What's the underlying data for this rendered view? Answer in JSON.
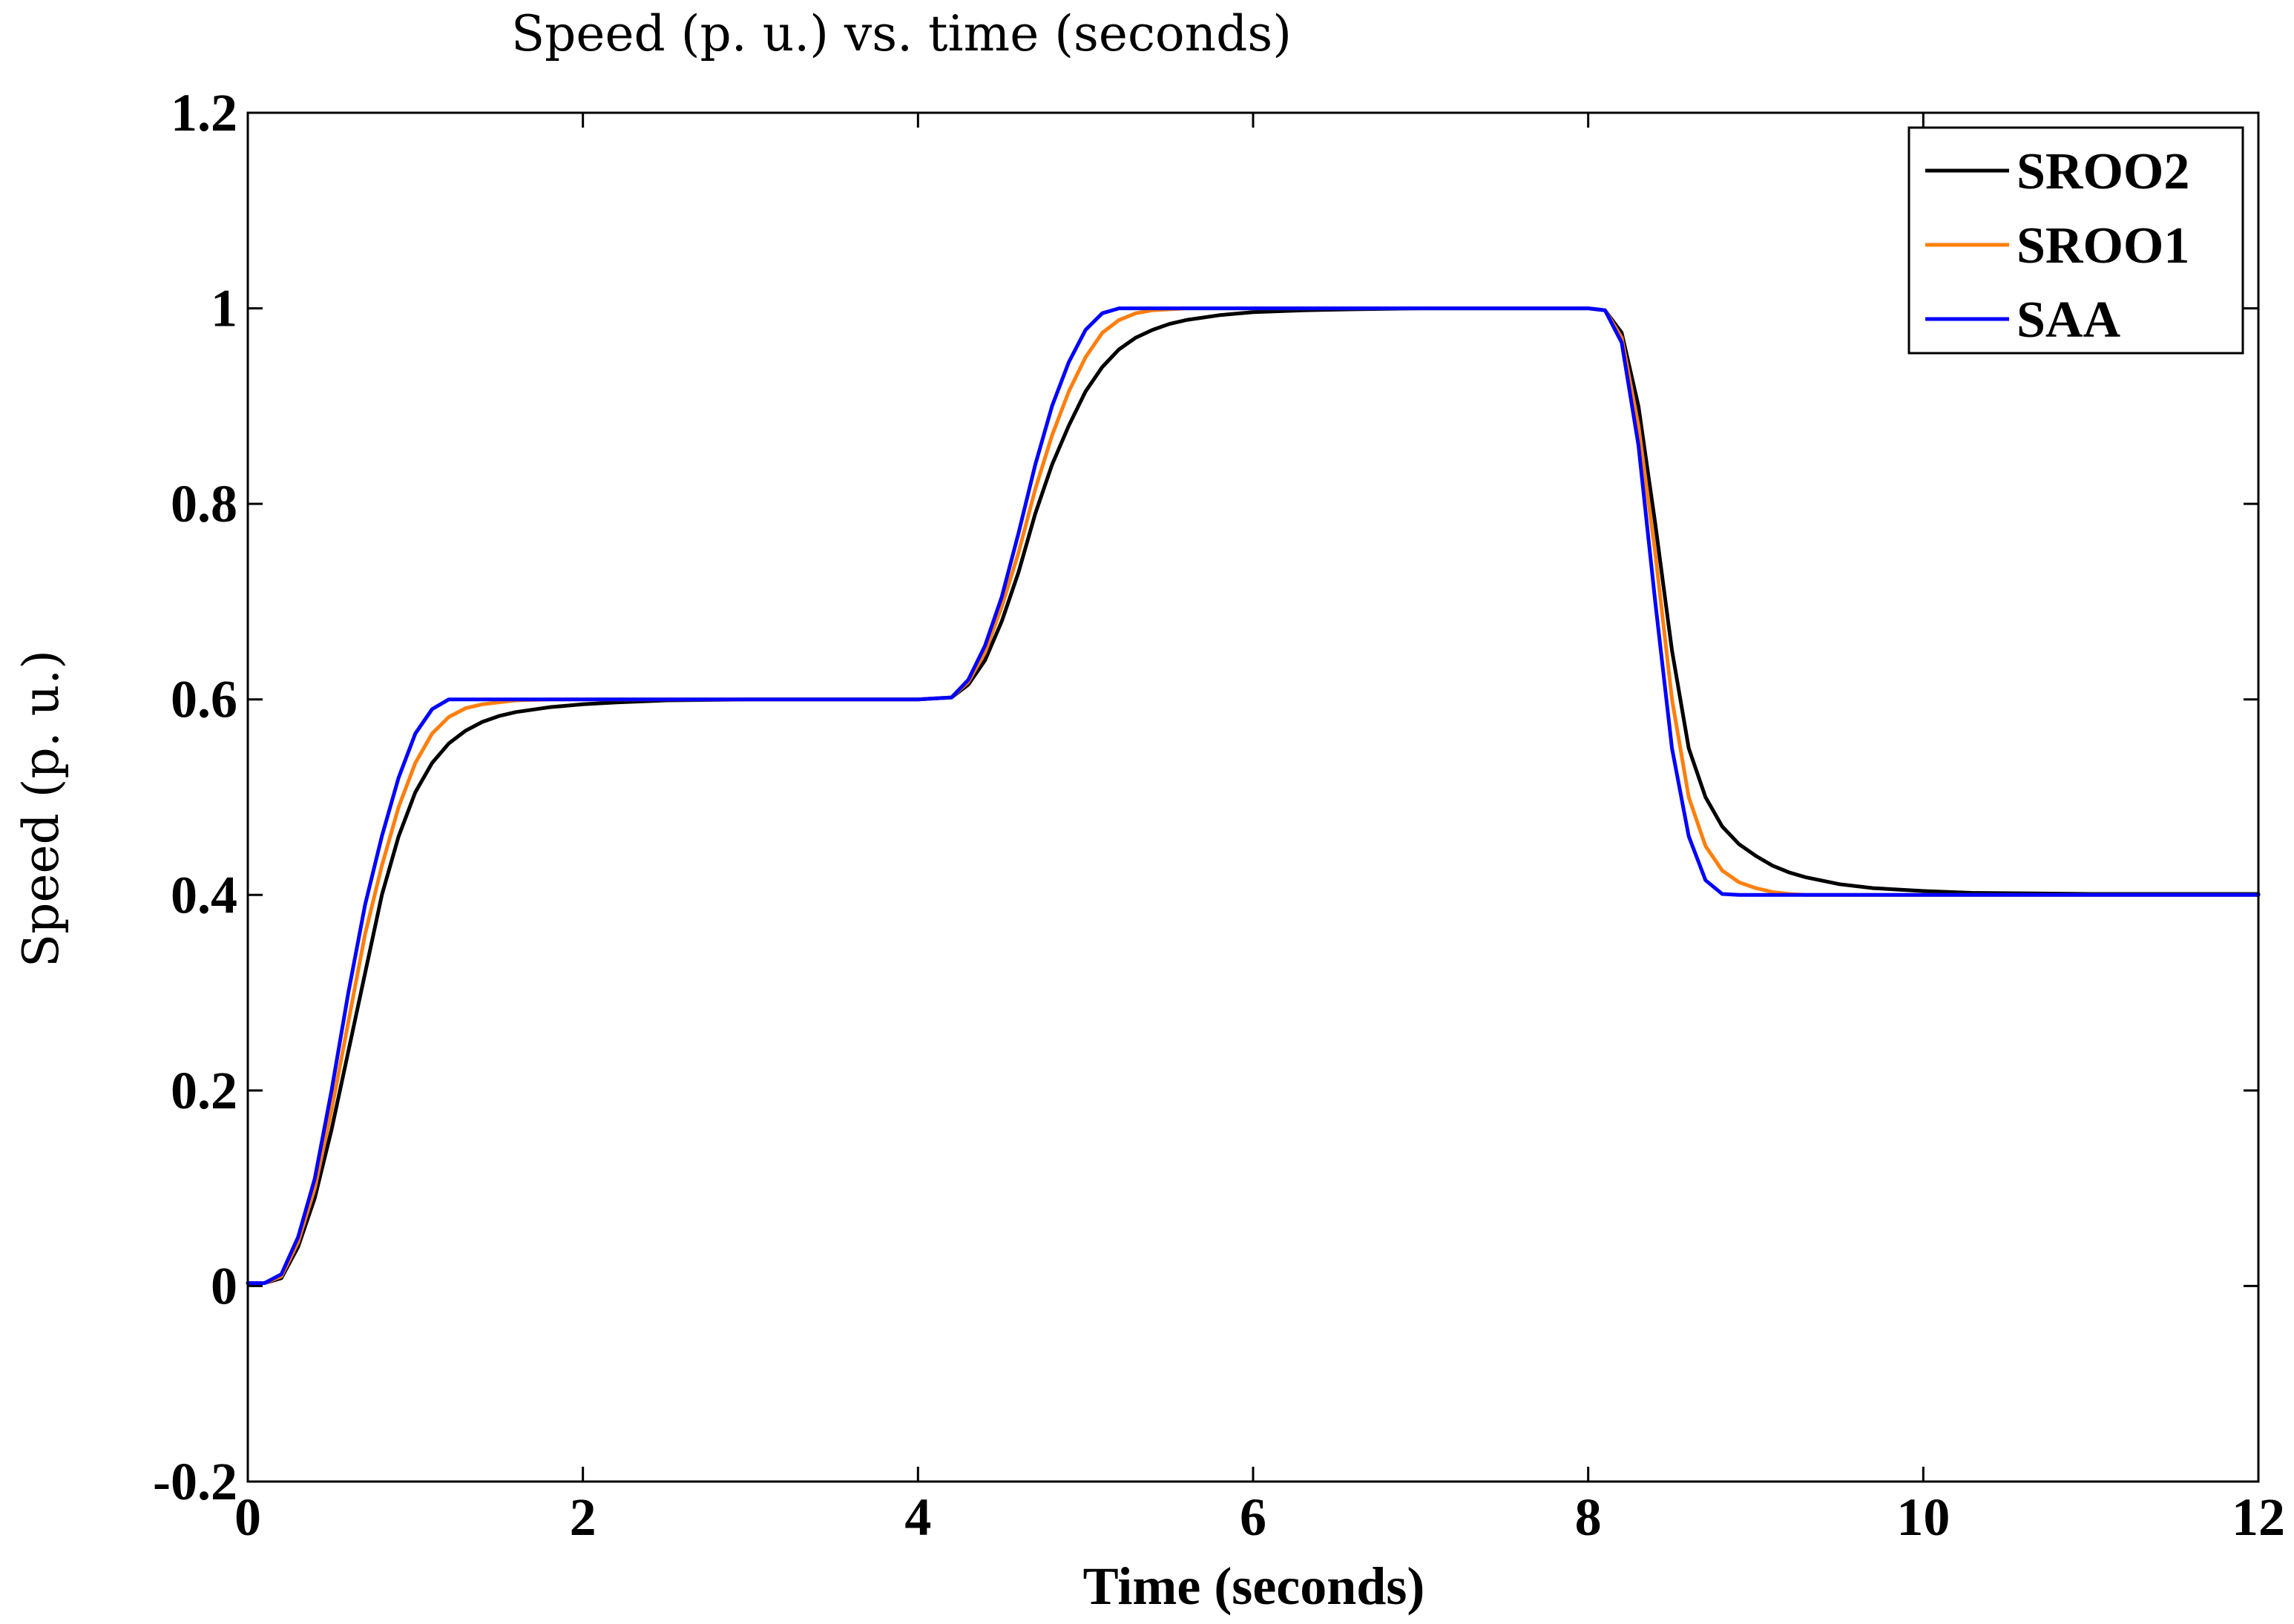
{
  "chart_data": {
    "type": "line",
    "title": "Speed (p. u.) vs. time (seconds)",
    "xlabel": "Time (seconds)",
    "ylabel": "Speed (p. u.)",
    "xlim": [
      0,
      12
    ],
    "ylim": [
      -0.2,
      1.2
    ],
    "xticks": [
      0,
      2,
      4,
      6,
      8,
      10,
      12
    ],
    "xtick_labels": [
      "0",
      "2",
      "4",
      "6",
      "8",
      "10",
      "12"
    ],
    "yticks": [
      -0.2,
      0,
      0.2,
      0.4,
      0.6,
      0.8,
      1,
      1.2
    ],
    "ytick_labels": [
      "-0.2",
      "0",
      "0.2",
      "0.4",
      "0.6",
      "0.8",
      "1",
      "1.2"
    ],
    "grid": false,
    "legend_position": "top-right",
    "x": [
      0,
      0.1,
      0.2,
      0.3,
      0.4,
      0.5,
      0.6,
      0.7,
      0.8,
      0.9,
      1.0,
      1.1,
      1.2,
      1.3,
      1.4,
      1.5,
      1.6,
      1.8,
      2.0,
      2.2,
      2.5,
      3.0,
      3.5,
      4.0,
      4.2,
      4.3,
      4.4,
      4.5,
      4.6,
      4.7,
      4.8,
      4.9,
      5.0,
      5.1,
      5.2,
      5.3,
      5.4,
      5.5,
      5.6,
      5.8,
      6.0,
      6.3,
      6.6,
      7.0,
      7.5,
      8.0,
      8.1,
      8.2,
      8.3,
      8.4,
      8.5,
      8.6,
      8.7,
      8.8,
      8.9,
      9.0,
      9.1,
      9.2,
      9.3,
      9.5,
      9.7,
      10.0,
      10.3,
      11.0,
      12.0
    ],
    "series": [
      {
        "name": "SROO2",
        "color": "#000000",
        "values": [
          0.003,
          0.003,
          0.008,
          0.04,
          0.09,
          0.16,
          0.24,
          0.32,
          0.4,
          0.46,
          0.505,
          0.535,
          0.555,
          0.568,
          0.577,
          0.583,
          0.587,
          0.592,
          0.595,
          0.597,
          0.599,
          0.6,
          0.6,
          0.6,
          0.602,
          0.615,
          0.64,
          0.68,
          0.73,
          0.79,
          0.84,
          0.88,
          0.915,
          0.94,
          0.958,
          0.97,
          0.978,
          0.984,
          0.988,
          0.993,
          0.996,
          0.998,
          0.999,
          1.0,
          1.0,
          1.0,
          0.998,
          0.975,
          0.9,
          0.78,
          0.65,
          0.55,
          0.5,
          0.47,
          0.452,
          0.44,
          0.43,
          0.423,
          0.418,
          0.411,
          0.407,
          0.404,
          0.402,
          0.401,
          0.401
        ]
      },
      {
        "name": "SROO1",
        "color": "#ff7f0e",
        "values": [
          0.003,
          0.003,
          0.01,
          0.045,
          0.1,
          0.18,
          0.27,
          0.36,
          0.43,
          0.49,
          0.535,
          0.565,
          0.582,
          0.591,
          0.595,
          0.597,
          0.599,
          0.6,
          0.6,
          0.6,
          0.6,
          0.6,
          0.6,
          0.6,
          0.602,
          0.618,
          0.648,
          0.695,
          0.75,
          0.815,
          0.87,
          0.915,
          0.95,
          0.975,
          0.988,
          0.995,
          0.998,
          0.999,
          1.0,
          1.0,
          1.0,
          1.0,
          1.0,
          1.0,
          1.0,
          1.0,
          0.998,
          0.97,
          0.88,
          0.75,
          0.6,
          0.5,
          0.45,
          0.425,
          0.413,
          0.407,
          0.403,
          0.401,
          0.4,
          0.4,
          0.4,
          0.4,
          0.4,
          0.4,
          0.4
        ]
      },
      {
        "name": "SAA",
        "color": "#0000ff",
        "values": [
          0.003,
          0.003,
          0.012,
          0.05,
          0.11,
          0.2,
          0.3,
          0.39,
          0.46,
          0.52,
          0.565,
          0.59,
          0.6,
          0.6,
          0.6,
          0.6,
          0.6,
          0.6,
          0.6,
          0.6,
          0.6,
          0.6,
          0.6,
          0.6,
          0.602,
          0.62,
          0.655,
          0.705,
          0.77,
          0.84,
          0.9,
          0.945,
          0.978,
          0.995,
          1.0,
          1.0,
          1.0,
          1.0,
          1.0,
          1.0,
          1.0,
          1.0,
          1.0,
          1.0,
          1.0,
          1.0,
          0.998,
          0.965,
          0.86,
          0.7,
          0.55,
          0.46,
          0.415,
          0.401,
          0.4,
          0.4,
          0.4,
          0.4,
          0.4,
          0.4,
          0.4,
          0.4,
          0.4,
          0.4,
          0.4
        ]
      }
    ]
  }
}
